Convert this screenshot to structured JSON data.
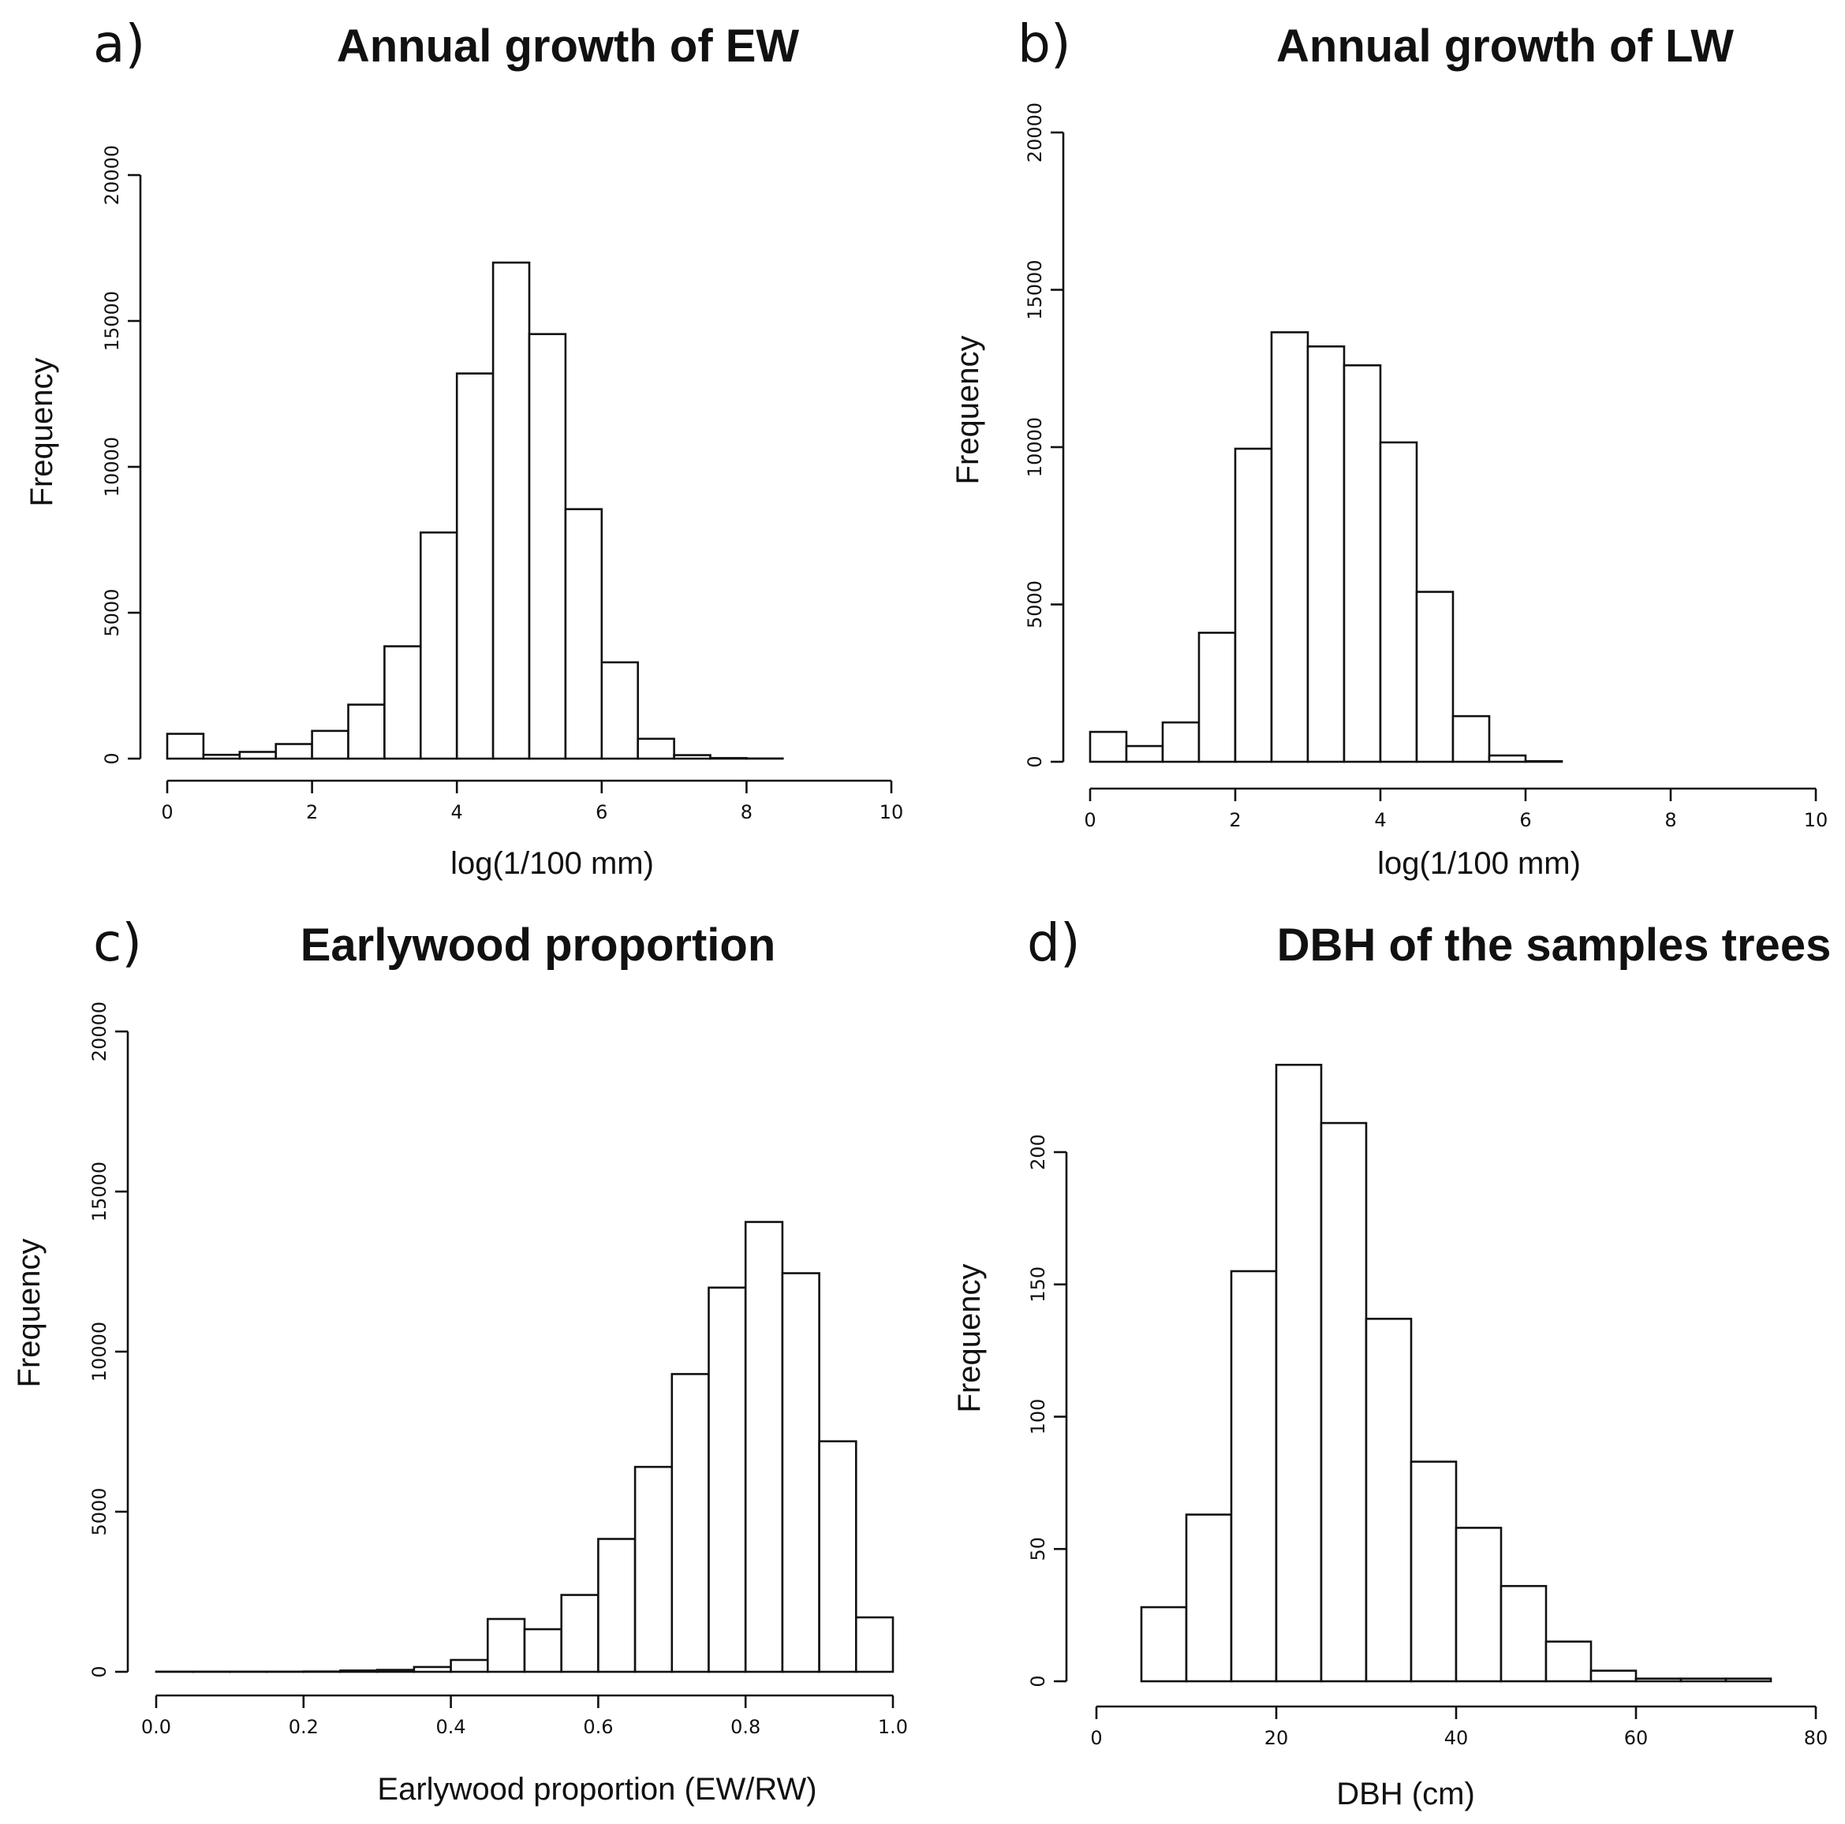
{
  "chart_data": [
    {
      "type": "bar",
      "panel": "a)",
      "title": "Annual growth of EW",
      "xlabel": "log(1/100 mm)",
      "ylabel": "Frequency",
      "bin_edges": [
        0,
        0.5,
        1,
        1.5,
        2,
        2.5,
        3,
        3.5,
        4,
        4.5,
        5,
        5.5,
        6,
        6.5,
        7,
        7.5,
        8,
        8.5
      ],
      "values": [
        850,
        130,
        230,
        500,
        950,
        1850,
        3850,
        7750,
        13200,
        17000,
        14550,
        8550,
        3300,
        680,
        120,
        20,
        5
      ],
      "xlim": [
        0,
        10
      ],
      "xticks": [
        "0",
        "2",
        "4",
        "6",
        "8",
        "10"
      ],
      "ylim": [
        0,
        20000
      ],
      "yticks": [
        "0",
        "5000",
        "10000",
        "15000",
        "20000"
      ]
    },
    {
      "type": "bar",
      "panel": "b)",
      "title": "Annual growth of LW",
      "xlabel": "log(1/100 mm)",
      "ylabel": "Frequency",
      "bin_edges": [
        0,
        0.5,
        1,
        1.5,
        2,
        2.5,
        3,
        3.5,
        4,
        4.5,
        5,
        5.5,
        6,
        6.5
      ],
      "values": [
        950,
        500,
        1250,
        4100,
        9950,
        13650,
        13200,
        12600,
        10150,
        5400,
        1450,
        200,
        20
      ],
      "xlim": [
        0,
        10
      ],
      "xticks": [
        "0",
        "2",
        "4",
        "6",
        "8",
        "10"
      ],
      "ylim": [
        0,
        20000
      ],
      "yticks": [
        "0",
        "5000",
        "10000",
        "15000",
        "20000"
      ]
    },
    {
      "type": "bar",
      "panel": "c)",
      "title": "Earlywood proportion",
      "xlabel": "Earlywood proportion (EW/RW)",
      "ylabel": "Frequency",
      "bin_edges": [
        0,
        0.05,
        0.1,
        0.15,
        0.2,
        0.25,
        0.3,
        0.35,
        0.4,
        0.45,
        0.5,
        0.55,
        0.6,
        0.65,
        0.7,
        0.75,
        0.8,
        0.85,
        0.9,
        0.95,
        1.0
      ],
      "values": [
        5,
        5,
        5,
        5,
        10,
        40,
        60,
        150,
        370,
        1650,
        1330,
        2400,
        4150,
        6400,
        9300,
        12000,
        14050,
        12450,
        7200,
        1700
      ],
      "xlim": [
        0,
        1
      ],
      "xticks": [
        "0.0",
        "0.2",
        "0.4",
        "0.6",
        "0.8",
        "1.0"
      ],
      "ylim": [
        0,
        20000
      ],
      "yticks": [
        "0",
        "5000",
        "10000",
        "15000",
        "20000"
      ]
    },
    {
      "type": "bar",
      "panel": "d)",
      "title": "DBH of the samples trees",
      "xlabel": "DBH (cm)",
      "ylabel": "Frequency",
      "bin_edges": [
        5,
        10,
        15,
        20,
        25,
        30,
        35,
        40,
        45,
        50,
        55,
        60,
        65,
        70,
        75
      ],
      "values": [
        28,
        63,
        155,
        233,
        211,
        137,
        83,
        58,
        36,
        15,
        4,
        1,
        1,
        1
      ],
      "xlim": [
        0,
        80
      ],
      "xticks": [
        "0",
        "20",
        "40",
        "60",
        "80"
      ],
      "ylim": [
        0,
        200
      ],
      "yticks": [
        "0",
        "50",
        "100",
        "150",
        "200"
      ]
    }
  ]
}
